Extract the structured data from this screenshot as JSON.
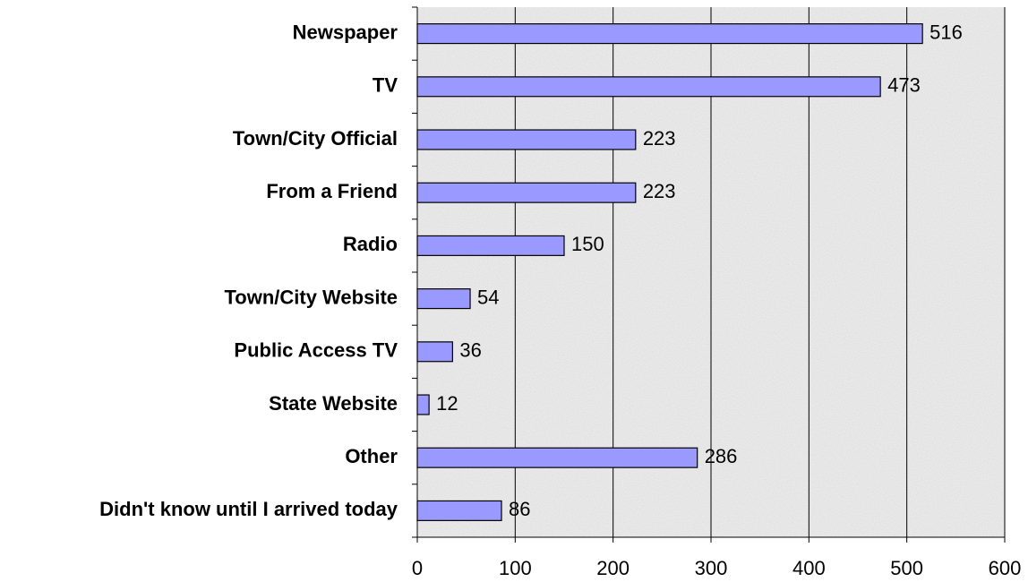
{
  "chart_data": {
    "type": "bar",
    "orientation": "horizontal",
    "categories": [
      "Newspaper",
      "TV",
      "Town/City Official",
      "From a Friend",
      "Radio",
      "Town/City Website",
      "Public Access TV",
      "State Website",
      "Other",
      "Didn't know until I arrived today"
    ],
    "values": [
      516,
      473,
      223,
      223,
      150,
      54,
      36,
      12,
      286,
      86
    ],
    "color": "#9999ff",
    "xlim": [
      0,
      600
    ],
    "xticks": [
      0,
      100,
      200,
      300,
      400,
      500,
      600
    ],
    "grid": true
  }
}
